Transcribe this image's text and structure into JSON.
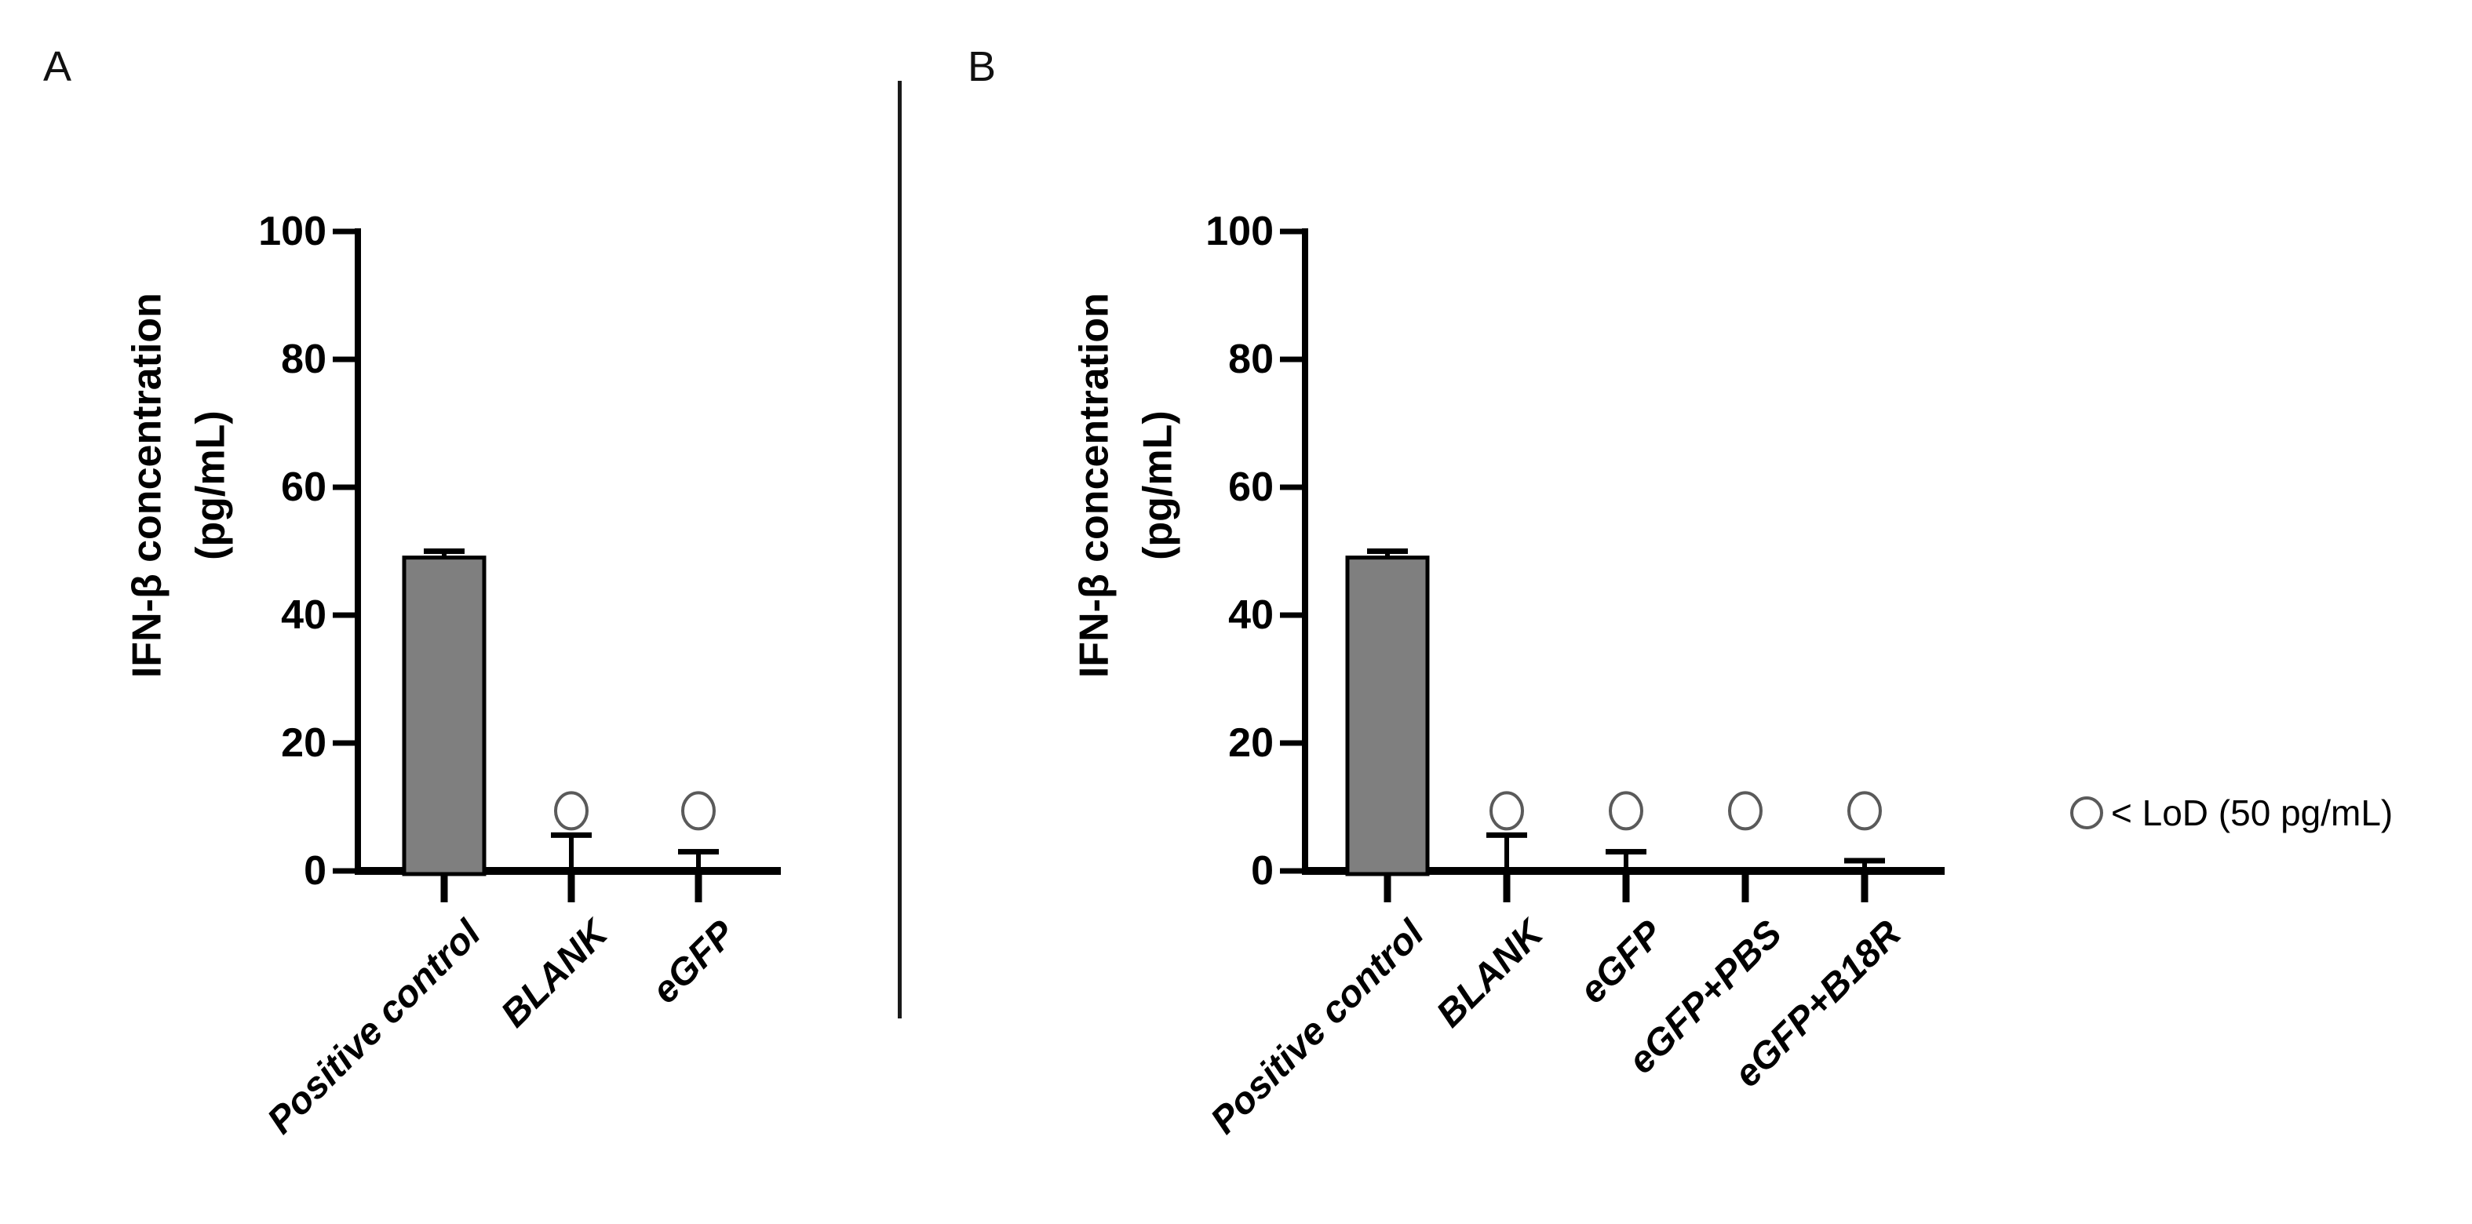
{
  "figure": {
    "background": "#ffffff",
    "panel_labels": [
      "A",
      "B"
    ]
  },
  "legend": {
    "symbol": "open-circle",
    "label": "< LoD (50 pg/mL)"
  },
  "colors": {
    "bar_fill": "#7f7f7f",
    "bar_border": "#000000",
    "axis": "#000000",
    "lod_circle_stroke": "#5a5a5a",
    "divider": "#1a1a1a"
  },
  "chart_data": [
    {
      "type": "bar",
      "panel": "A",
      "ylabel": "IFN-β concentration (pg/mL)",
      "ylabel_lines": [
        "IFN-β concentration",
        "(pg/mL)"
      ],
      "ylim": [
        0,
        100
      ],
      "yticks": [
        0,
        20,
        40,
        60,
        80,
        100
      ],
      "grid": false,
      "categories": [
        "Positive control",
        "BLANK",
        "eGFP"
      ],
      "values": [
        49,
        0,
        0
      ],
      "error_whisker_top": [
        50,
        5.6,
        3
      ],
      "below_lod": [
        false,
        true,
        true
      ],
      "lod_marker_value": 9.4
    },
    {
      "type": "bar",
      "panel": "B",
      "ylabel": "IFN-β concentration (pg/mL)",
      "ylabel_lines": [
        "IFN-β concentration",
        "(pg/mL)"
      ],
      "ylim": [
        0,
        100
      ],
      "yticks": [
        0,
        20,
        40,
        60,
        80,
        100
      ],
      "grid": false,
      "categories": [
        "Positive control",
        "BLANK",
        "eGFP",
        "eGFP+PBS",
        "eGFP+B18R"
      ],
      "values": [
        49,
        0,
        0,
        0,
        0
      ],
      "error_whisker_top": [
        50,
        5.6,
        3,
        null,
        1.6
      ],
      "below_lod": [
        false,
        true,
        true,
        true,
        true
      ],
      "lod_marker_value": 9.4
    }
  ]
}
